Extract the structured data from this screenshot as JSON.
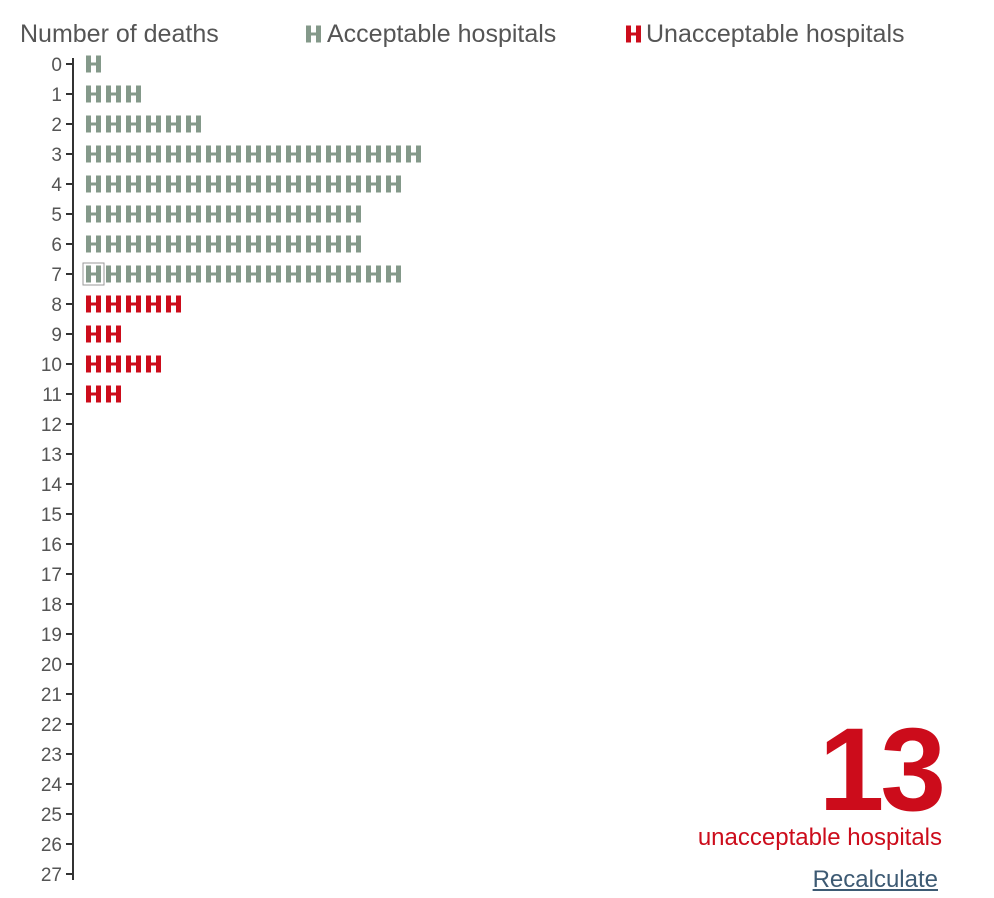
{
  "legend": {
    "axis_title": "Number of deaths",
    "acceptable_label": "Acceptable hospitals",
    "unacceptable_label": "Unacceptable hospitals"
  },
  "colors": {
    "acceptable": "#84998a",
    "unacceptable": "#cc0c1b",
    "axis": "#333333",
    "text": "#555555",
    "link": "#3d5a73"
  },
  "icon_name": "hospital-h-icon",
  "summary": {
    "count": "13",
    "caption": "unacceptable hospitals",
    "recalculate_label": "Recalculate"
  },
  "chart_data": {
    "type": "pictogram",
    "ylabel": "Number of deaths",
    "categories": [
      "0",
      "1",
      "2",
      "3",
      "4",
      "5",
      "6",
      "7",
      "8",
      "9",
      "10",
      "11",
      "12",
      "13",
      "14",
      "15",
      "16",
      "17",
      "18",
      "19",
      "20",
      "21",
      "22",
      "23",
      "24",
      "25",
      "26",
      "27"
    ],
    "threshold": 8,
    "series": [
      {
        "name": "Acceptable hospitals",
        "values": [
          1,
          3,
          6,
          17,
          16,
          14,
          14,
          16,
          0,
          0,
          0,
          0,
          0,
          0,
          0,
          0,
          0,
          0,
          0,
          0,
          0,
          0,
          0,
          0,
          0,
          0,
          0,
          0
        ]
      },
      {
        "name": "Unacceptable hospitals",
        "values": [
          0,
          0,
          0,
          0,
          0,
          0,
          0,
          0,
          5,
          2,
          4,
          2,
          0,
          0,
          0,
          0,
          0,
          0,
          0,
          0,
          0,
          0,
          0,
          0,
          0,
          0,
          0,
          0
        ]
      }
    ],
    "highlighted": {
      "deaths": 7,
      "index": 0
    },
    "total_unacceptable": 13
  }
}
